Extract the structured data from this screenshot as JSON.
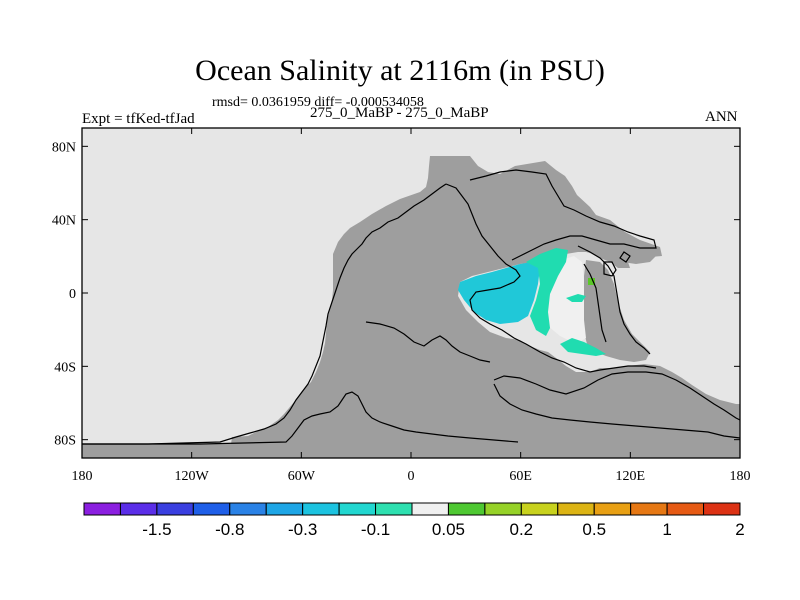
{
  "chart_data": {
    "type": "heatmap",
    "title": "Ocean Salinity at 2116m (in PSU)",
    "stats": "rmsd= 0.0361959 diff= -0.000534058",
    "left_label": "Expt = tfKed-tfJad",
    "center_label": "275_0_MaBP - 275_0_MaBP",
    "right_label": "ANN",
    "projection": "cylindrical equidistant",
    "xlim": [
      -180,
      180
    ],
    "ylim": [
      -90,
      90
    ],
    "x_ticks": [
      {
        "value": -180,
        "label": "180"
      },
      {
        "value": -120,
        "label": "120W"
      },
      {
        "value": -60,
        "label": "60W"
      },
      {
        "value": 0,
        "label": "0"
      },
      {
        "value": 60,
        "label": "60E"
      },
      {
        "value": 120,
        "label": "120E"
      },
      {
        "value": 180,
        "label": "180"
      }
    ],
    "y_ticks": [
      {
        "value": 80,
        "label": "80N"
      },
      {
        "value": 40,
        "label": "40N"
      },
      {
        "value": 0,
        "label": "0"
      },
      {
        "value": -40,
        "label": "40S"
      },
      {
        "value": -80,
        "label": "80S"
      }
    ],
    "colorbar": {
      "colors": [
        "#8b1fe0",
        "#5b2ee8",
        "#3a3fe0",
        "#1f5fe8",
        "#2a82e6",
        "#1ea6e6",
        "#1cc3e0",
        "#22d7d0",
        "#2ee0b0",
        "#f0f0f0",
        "#4ec832",
        "#96d228",
        "#c8d21e",
        "#dcb414",
        "#e8a014",
        "#e67814",
        "#e65a14",
        "#dc3214"
      ],
      "labels": [
        "-1.5",
        "-0.8",
        "-0.3",
        "-0.1",
        "0.05",
        "0.2",
        "0.5",
        "1",
        "2"
      ]
    },
    "fill_colors": {
      "missing": "#e6e6e6",
      "land_mask": "#9e9e9e",
      "near_zero": "#f0f0f0",
      "cyan": "#20c8d8",
      "teal": "#20dcb0",
      "green": "#5ac828"
    }
  }
}
